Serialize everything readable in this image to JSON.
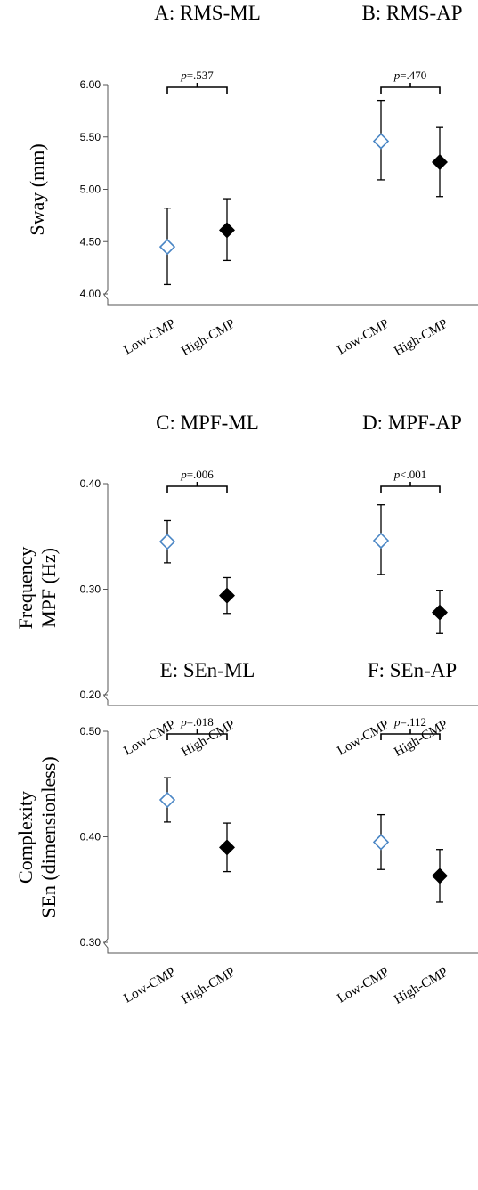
{
  "chart_data": [
    {
      "type": "scatter",
      "ylabel": [
        "Sway (mm)"
      ],
      "ylim": [
        4.0,
        6.0
      ],
      "yticks": [
        "4.00",
        "4.50",
        "5.00",
        "5.50",
        "6.00"
      ],
      "panels": [
        {
          "title": "A: RMS-ML",
          "pvalue_prefix": "p",
          "pvalue": "=.537",
          "categories": [
            "Low-CMP",
            "High-CMP"
          ],
          "mean": [
            4.45,
            4.61
          ],
          "error_low": [
            4.09,
            4.32
          ],
          "error_high": [
            4.82,
            4.91
          ]
        },
        {
          "title": "B: RMS-AP",
          "pvalue_prefix": "p",
          "pvalue": "=.470",
          "categories": [
            "Low-CMP",
            "High-CMP"
          ],
          "mean": [
            5.46,
            5.26
          ],
          "error_low": [
            5.09,
            4.93
          ],
          "error_high": [
            5.85,
            5.59
          ]
        }
      ]
    },
    {
      "type": "scatter",
      "ylabel": [
        "Frequency",
        "MPF (Hz)"
      ],
      "ylim": [
        0.2,
        0.4
      ],
      "yticks": [
        "0.20",
        "0.30",
        "0.40"
      ],
      "panels": [
        {
          "title": "C: MPF-ML",
          "pvalue_prefix": "p",
          "pvalue": "=.006",
          "categories": [
            "Low-CMP",
            "High-CMP"
          ],
          "mean": [
            0.345,
            0.294
          ],
          "error_low": [
            0.325,
            0.277
          ],
          "error_high": [
            0.365,
            0.311
          ]
        },
        {
          "title": "D: MPF-AP",
          "pvalue_prefix": "p",
          "pvalue": "<.001",
          "categories": [
            "Low-CMP",
            "High-CMP"
          ],
          "mean": [
            0.346,
            0.278
          ],
          "error_low": [
            0.314,
            0.258
          ],
          "error_high": [
            0.38,
            0.299
          ]
        }
      ]
    },
    {
      "type": "scatter",
      "ylabel": [
        "Complexity",
        "SEn (dimensionless)"
      ],
      "ylim": [
        0.3,
        0.5
      ],
      "yticks": [
        "0.30",
        "0.40",
        "0.50"
      ],
      "panels": [
        {
          "title": "E: SEn-ML",
          "pvalue_prefix": "p",
          "pvalue": "=.018",
          "categories": [
            "Low-CMP",
            "High-CMP"
          ],
          "mean": [
            0.435,
            0.39
          ],
          "error_low": [
            0.414,
            0.367
          ],
          "error_high": [
            0.456,
            0.413
          ]
        },
        {
          "title": "F: SEn-AP",
          "pvalue_prefix": "p",
          "pvalue": "=.112",
          "categories": [
            "Low-CMP",
            "High-CMP"
          ],
          "mean": [
            0.395,
            0.363
          ],
          "error_low": [
            0.369,
            0.338
          ],
          "error_high": [
            0.421,
            0.388
          ]
        }
      ]
    }
  ],
  "colors": {
    "low_cmp_marker": "#4a86c5",
    "high_cmp_marker": "#000000"
  }
}
